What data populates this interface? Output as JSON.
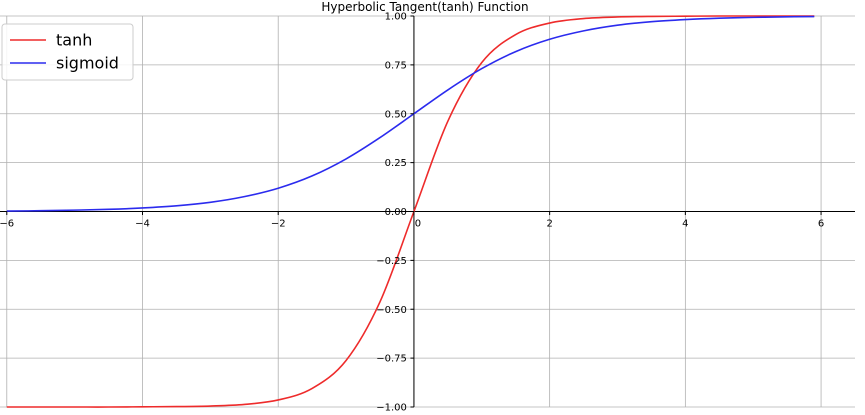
{
  "chart_data": {
    "type": "line",
    "title": "Hyperbolic Tangent(tanh) Function",
    "xlim": [
      -6.1,
      6.5
    ],
    "ylim": [
      -1.0,
      1.0
    ],
    "xticks": [
      -6,
      -4,
      -2,
      0,
      2,
      4,
      6
    ],
    "xtick_labels": [
      "−6",
      "−4",
      "−2",
      "0",
      "2",
      "4",
      "6"
    ],
    "yticks": [
      -1.0,
      -0.75,
      -0.5,
      -0.25,
      0.0,
      0.25,
      0.5,
      0.75,
      1.0
    ],
    "ytick_labels": [
      "−1.00",
      "−0.75",
      "−0.50",
      "−0.25",
      "0.00",
      "0.25",
      "0.50",
      "0.75",
      "1.00"
    ],
    "grid": true,
    "legend_position": "top-left",
    "x": [
      -6,
      -5.5,
      -5,
      -4.5,
      -4,
      -3.5,
      -3,
      -2.5,
      -2,
      -1.5,
      -1,
      -0.5,
      0,
      0.5,
      1,
      1.5,
      2,
      2.5,
      3,
      3.5,
      4,
      4.5,
      5,
      5.5,
      5.9
    ],
    "series": [
      {
        "name": "tanh",
        "color": "#ee2b2b",
        "values": [
          -1.0,
          -1.0,
          -1.0,
          -1.0,
          -0.999,
          -0.998,
          -0.995,
          -0.987,
          -0.964,
          -0.905,
          -0.762,
          -0.462,
          0.0,
          0.462,
          0.762,
          0.905,
          0.964,
          0.987,
          0.995,
          0.998,
          0.999,
          1.0,
          1.0,
          1.0,
          1.0
        ]
      },
      {
        "name": "sigmoid",
        "color": "#2b2bee",
        "values": [
          0.002,
          0.004,
          0.007,
          0.011,
          0.018,
          0.029,
          0.047,
          0.076,
          0.119,
          0.182,
          0.269,
          0.378,
          0.5,
          0.622,
          0.731,
          0.818,
          0.881,
          0.924,
          0.953,
          0.971,
          0.982,
          0.989,
          0.993,
          0.996,
          0.997
        ]
      }
    ]
  }
}
